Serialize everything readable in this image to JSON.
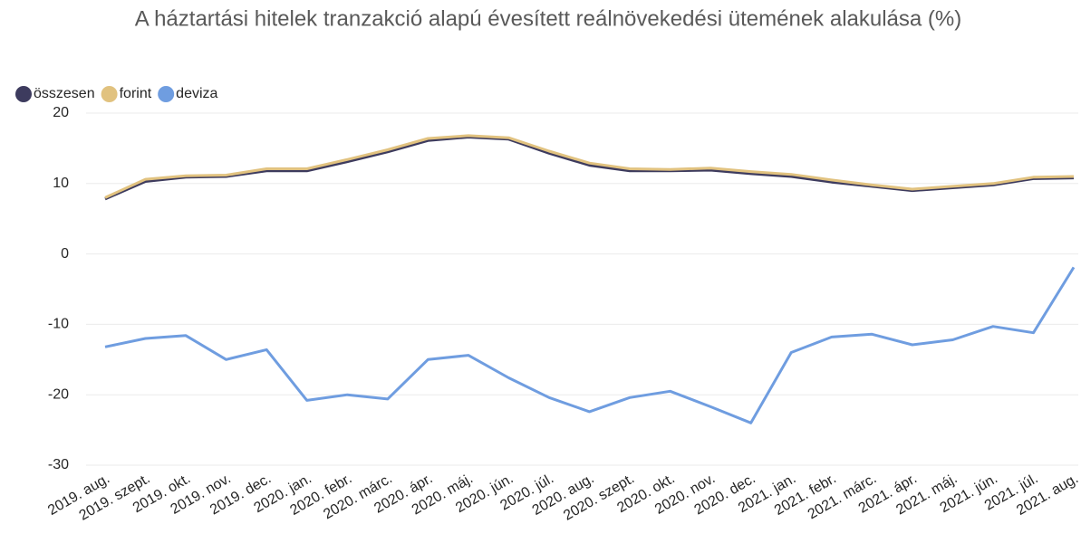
{
  "chart_data": {
    "type": "line",
    "title": "A háztartási hitelek tranzakció alapú évesített reálnövekedési ütemének alakulása (%)",
    "categories": [
      "2019. aug.",
      "2019. szept.",
      "2019. okt.",
      "2019. nov.",
      "2019. dec.",
      "2020. jan.",
      "2020. febr.",
      "2020. márc.",
      "2020. ápr.",
      "2020. máj.",
      "2020. jún.",
      "2020. júl.",
      "2020. aug.",
      "2020. szept.",
      "2020. okt.",
      "2020. nov.",
      "2020. dec.",
      "2021. jan.",
      "2021. febr.",
      "2021. márc.",
      "2021. ápr.",
      "2021. máj.",
      "2021. jún.",
      "2021. júl.",
      "2021. aug."
    ],
    "series": [
      {
        "name": "összesen",
        "color": "#3d3b5e",
        "values": [
          7.8,
          10.3,
          10.9,
          11.0,
          11.8,
          11.8,
          13.1,
          14.5,
          16.1,
          16.6,
          16.3,
          14.3,
          12.6,
          11.8,
          11.8,
          11.9,
          11.4,
          11.0,
          10.2,
          9.6,
          9.0,
          9.4,
          9.8,
          10.7,
          10.8
        ]
      },
      {
        "name": "forint",
        "color": "#e1c27f",
        "values": [
          8.0,
          10.6,
          11.1,
          11.2,
          12.1,
          12.1,
          13.4,
          14.8,
          16.4,
          16.8,
          16.5,
          14.6,
          12.9,
          12.1,
          12.0,
          12.2,
          11.7,
          11.3,
          10.5,
          9.8,
          9.2,
          9.6,
          10.0,
          10.9,
          11.0
        ]
      },
      {
        "name": "deviza",
        "color": "#6f9de0",
        "values": [
          -13.2,
          -12.0,
          -11.6,
          -15.0,
          -13.6,
          -20.8,
          -20.0,
          -20.6,
          -15.0,
          -14.4,
          -17.6,
          -20.4,
          -22.4,
          -20.4,
          -19.5,
          -21.7,
          -24.0,
          -14.0,
          -11.8,
          -11.4,
          -12.9,
          -12.2,
          -10.3,
          -11.2,
          -1.9
        ]
      }
    ],
    "ylim": [
      -30,
      20
    ],
    "yticks": [
      -30,
      -20,
      -10,
      0,
      10,
      20
    ],
    "grid": true,
    "legend": "top-left"
  }
}
